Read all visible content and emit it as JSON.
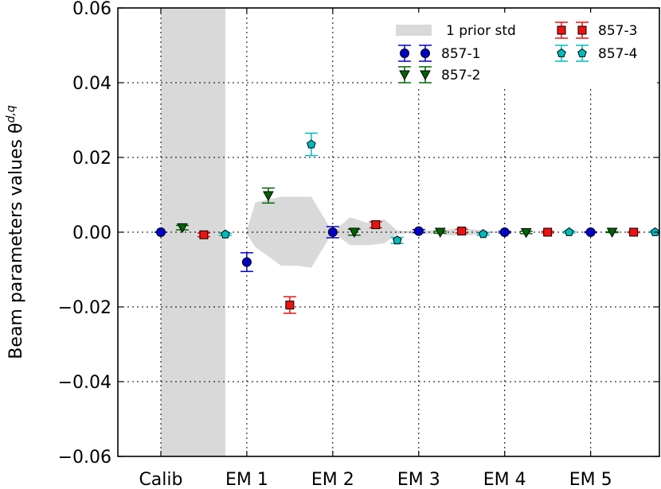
{
  "chart_data": {
    "type": "scatter",
    "title": "",
    "xlabel": "",
    "ylabel": "Beam parameters values θ",
    "ylabel_superscript": "d,q",
    "ylim": [
      -0.06,
      0.06
    ],
    "yticks": [
      -0.06,
      -0.04,
      -0.02,
      0.0,
      0.02,
      0.04,
      0.06
    ],
    "ytick_labels": [
      "−0.06",
      "−0.04",
      "−0.02",
      "0.00",
      "0.02",
      "0.04",
      "0.06"
    ],
    "xlim": [
      -0.5,
      5.8
    ],
    "categories": [
      "Calib",
      "EM 1",
      "EM 2",
      "EM 3",
      "EM 4",
      "EM 5"
    ],
    "category_positions": [
      0,
      1,
      2,
      3,
      4,
      5
    ],
    "grid": true,
    "legend_placement": "top-right",
    "prior_band": {
      "name": "1 prior std",
      "color": "#d9d9d9",
      "calib_span": [
        0,
        0.75
      ],
      "shape_x": [
        1.0,
        1.1,
        1.4,
        1.6,
        1.75,
        2.0,
        2.2,
        2.4,
        2.6,
        2.75,
        2.9,
        3.0,
        3.2,
        3.4,
        3.6,
        3.8,
        3.9
      ],
      "shape_upper": [
        0.0005,
        0.008,
        0.0095,
        0.0095,
        0.0095,
        0.0,
        0.004,
        0.0025,
        0.0035,
        0.0005,
        0.0003,
        0.0005,
        0.0005,
        0.0009,
        0.0008,
        0.0004,
        0.0001
      ],
      "shape_lower": [
        -0.0005,
        -0.004,
        -0.009,
        -0.009,
        -0.0095,
        0.0,
        -0.0035,
        -0.0035,
        -0.003,
        -0.0005,
        -0.0003,
        -0.0005,
        -0.0005,
        -0.0009,
        -0.0008,
        -0.0004,
        -0.0001
      ]
    },
    "series": [
      {
        "name": "857-1",
        "marker": "circle",
        "color": "#0000cc",
        "offset": 0.0,
        "values": [
          0.0,
          -0.008,
          0.0,
          0.0003,
          0.0,
          0.0
        ],
        "errors": [
          0.0,
          0.0025,
          0.0015,
          0.0004,
          0.0002,
          0.0001
        ]
      },
      {
        "name": "857-2",
        "marker": "triangle-down",
        "color": "#006400",
        "offset": 0.25,
        "values": [
          0.0012,
          0.0098,
          0.0,
          0.0,
          -0.0001,
          0.0
        ],
        "errors": [
          0.0006,
          0.002,
          0.0008,
          0.0003,
          0.0003,
          0.0001
        ]
      },
      {
        "name": "857-3",
        "marker": "square",
        "color": "#ee1111",
        "offset": 0.5,
        "values": [
          -0.0007,
          -0.0195,
          0.002,
          0.0003,
          0.0,
          0.0
        ],
        "errors": [
          0.0005,
          0.0022,
          0.0008,
          0.0005,
          0.0002,
          0.0001
        ]
      },
      {
        "name": "857-4",
        "marker": "pentagon",
        "color": "#00bbbb",
        "offset": 0.75,
        "values": [
          -0.0006,
          0.0235,
          -0.0022,
          -0.0005,
          0.0,
          0.0
        ],
        "errors": [
          0.0003,
          0.003,
          0.0008,
          0.0003,
          0.0002,
          0.0001
        ]
      }
    ]
  }
}
